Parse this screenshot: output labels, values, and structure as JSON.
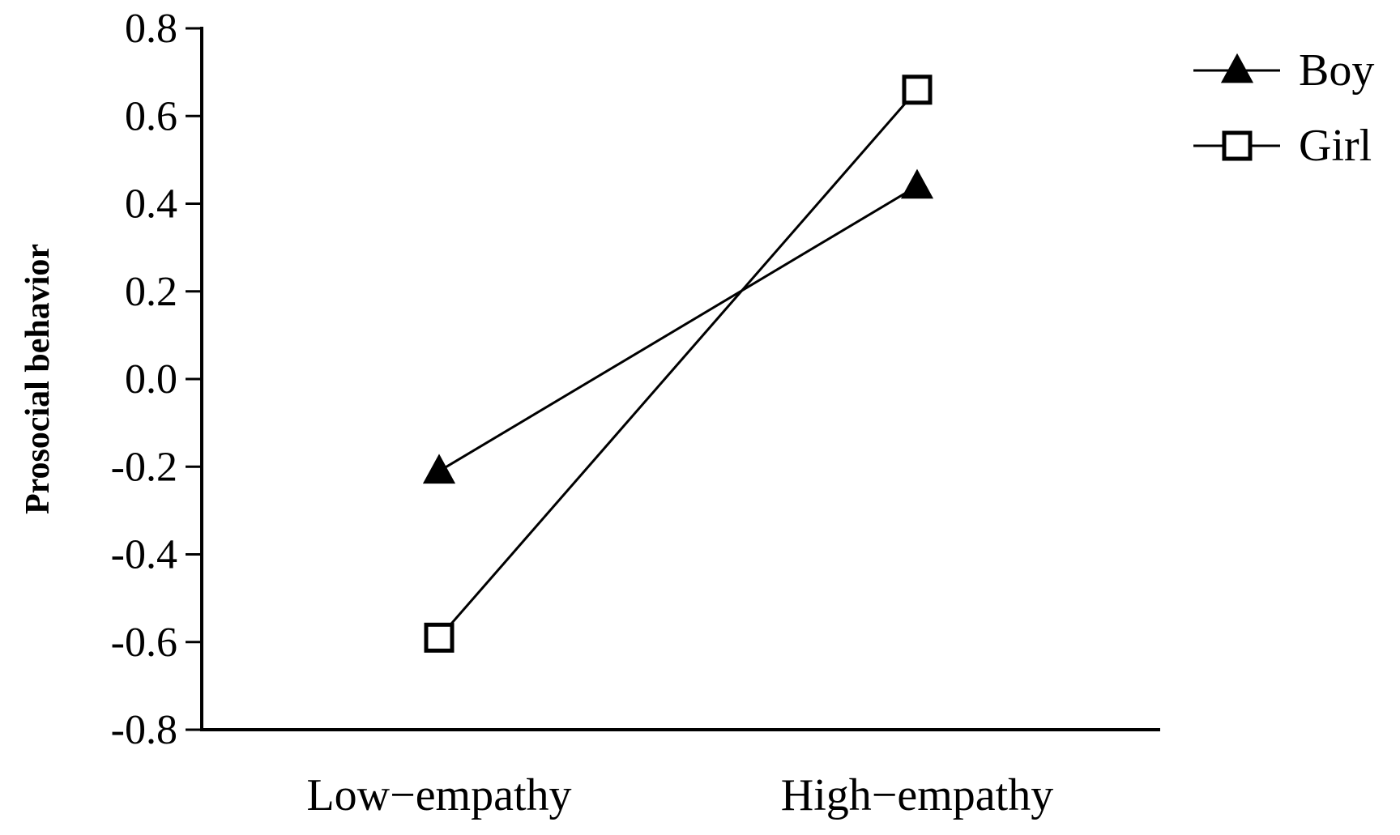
{
  "chart_data": {
    "type": "line",
    "categories": [
      "Low−empathy",
      "High−empathy"
    ],
    "ylabel": "Prosocial behavior",
    "xlabel": "",
    "ylim": [
      -0.8,
      0.8
    ],
    "yticks": [
      0.8,
      0.6,
      0.4,
      0.2,
      0.0,
      -0.2,
      -0.4,
      -0.6,
      -0.8
    ],
    "ytick_labels": [
      "0.8",
      "0.6",
      "0.4",
      "0.2",
      "0.0",
      "-0.2",
      "-0.4",
      "-0.6",
      "-0.8"
    ],
    "grid": false,
    "legend_position": "top-right",
    "series": [
      {
        "name": "Boy",
        "marker": "filled-triangle",
        "color": "#000000",
        "values": [
          -0.21,
          0.44
        ]
      },
      {
        "name": "Girl",
        "marker": "open-square",
        "color": "#000000",
        "values": [
          -0.59,
          0.66
        ]
      }
    ]
  }
}
